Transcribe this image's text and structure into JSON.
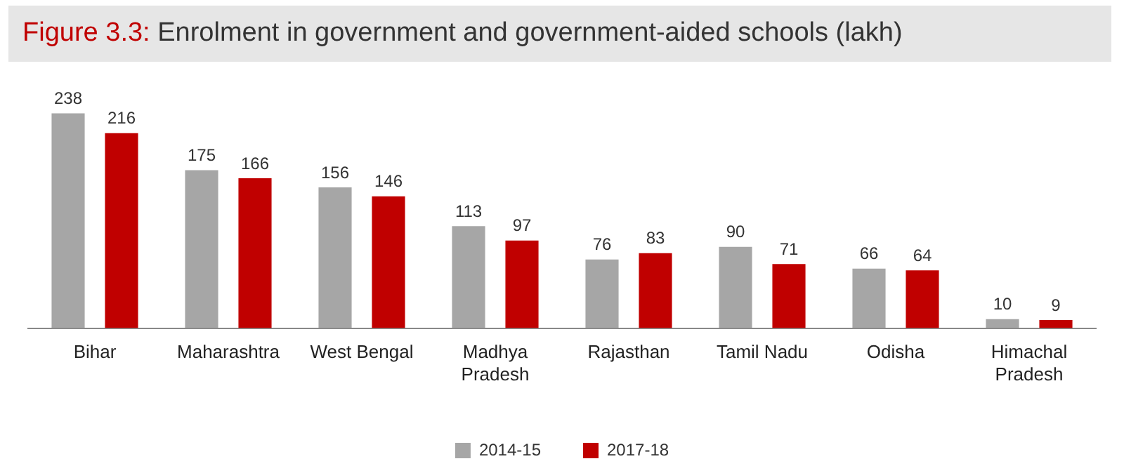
{
  "chart_data": {
    "type": "bar",
    "title": "Figure 3.3: Enrolment in government and government-aided schools (lakh)",
    "categories": [
      "Bihar",
      "Maharashtra",
      "West Bengal",
      "Madhya Pradesh",
      "Rajasthan",
      "Tamil Nadu",
      "Odisha",
      "Himachal Pradesh"
    ],
    "series": [
      {
        "name": "2014-15",
        "color": "#a6a6a6",
        "values": [
          238,
          175,
          156,
          113,
          76,
          90,
          66,
          10
        ]
      },
      {
        "name": "2017-18",
        "color": "#c00000",
        "values": [
          216,
          166,
          146,
          97,
          83,
          71,
          64,
          9
        ]
      }
    ],
    "data_labels": true,
    "legend": "bottom",
    "grid": false
  }
}
